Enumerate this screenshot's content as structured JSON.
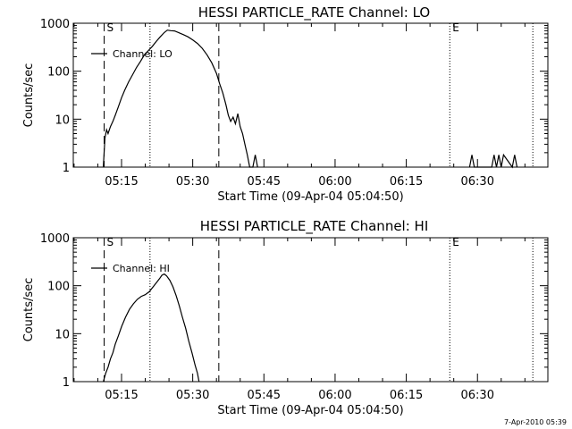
{
  "timestamp": "7-Apr-2010 05:39",
  "chart_data": [
    {
      "type": "line",
      "title": "HESSI PARTICLE_RATE Channel: LO",
      "xlabel": "Start Time (09-Apr-04 05:04:50)",
      "ylabel": "Counts/sec",
      "y_scale": "log",
      "ylim": [
        1,
        1000
      ],
      "y_ticks": [
        1,
        10,
        100,
        1000
      ],
      "y_tick_labels": [
        "1",
        "10",
        "100",
        "1000"
      ],
      "xlim": [
        "05:04:50",
        "06:44:50"
      ],
      "x_ticks": [
        "05:15",
        "05:30",
        "05:45",
        "06:00",
        "06:15",
        "06:30"
      ],
      "legend": {
        "label": "Channel: LO",
        "position": "top-left"
      },
      "markers": [
        {
          "label": "S",
          "time": "05:11:20",
          "style": "dashed"
        },
        {
          "label": "",
          "time": "05:21:00",
          "style": "dotted"
        },
        {
          "label": "",
          "time": "05:35:30",
          "style": "dashed"
        },
        {
          "label": "E",
          "time": "06:24:10",
          "style": "dotted"
        },
        {
          "label": "",
          "time": "06:41:40",
          "style": "dotted"
        }
      ],
      "series": [
        {
          "name": "Channel: LO",
          "x": [
            "05:11:10",
            "05:11:30",
            "05:11:50",
            "05:12:10",
            "05:12:40",
            "05:13:10",
            "05:13:40",
            "05:14:20",
            "05:15:00",
            "05:15:40",
            "05:16:30",
            "05:17:20",
            "05:18:10",
            "05:19:00",
            "05:19:50",
            "05:20:40",
            "05:21:30",
            "05:22:20",
            "05:23:10",
            "05:24:00",
            "05:24:40",
            "05:25:20",
            "05:26:10",
            "05:27:00",
            "05:28:00",
            "05:29:00",
            "05:30:00",
            "05:31:00",
            "05:32:00",
            "05:33:00",
            "05:34:00",
            "05:35:00",
            "05:35:40",
            "05:36:20",
            "05:37:00",
            "05:37:30",
            "05:38:00",
            "05:38:30",
            "05:39:00",
            "05:39:30",
            "05:40:00",
            "05:40:30",
            "05:41:00",
            "05:41:30",
            "05:42:00",
            "05:42:40",
            "05:43:10",
            "05:43:40"
          ],
          "y": [
            1,
            4,
            6,
            5,
            7,
            9,
            12,
            18,
            28,
            40,
            60,
            85,
            120,
            160,
            220,
            270,
            330,
            420,
            520,
            640,
            720,
            700,
            690,
            640,
            580,
            520,
            450,
            380,
            300,
            220,
            150,
            90,
            55,
            35,
            20,
            12,
            9,
            11,
            8,
            13,
            7,
            5,
            3,
            1.8,
            1,
            1,
            1.8,
            1
          ]
        },
        {
          "name": "",
          "x": [
            "06:28:20",
            "06:28:50",
            "06:29:20",
            "06:33:00",
            "06:33:30",
            "06:34:00",
            "06:34:30",
            "06:35:00",
            "06:35:30",
            "06:37:20",
            "06:37:50",
            "06:38:20"
          ],
          "y": [
            1,
            1.8,
            1,
            1,
            1.8,
            1,
            1.8,
            1,
            1.8,
            1,
            1.8,
            1
          ]
        }
      ]
    },
    {
      "type": "line",
      "title": "HESSI PARTICLE_RATE Channel: HI",
      "xlabel": "Start Time (09-Apr-04 05:04:50)",
      "ylabel": "Counts/sec",
      "y_scale": "log",
      "ylim": [
        1,
        1000
      ],
      "y_ticks": [
        1,
        10,
        100,
        1000
      ],
      "y_tick_labels": [
        "1",
        "10",
        "100",
        "1000"
      ],
      "xlim": [
        "05:04:50",
        "06:44:50"
      ],
      "x_ticks": [
        "05:15",
        "05:30",
        "05:45",
        "06:00",
        "06:15",
        "06:30"
      ],
      "legend": {
        "label": "Channel: HI",
        "position": "top-left"
      },
      "markers": [
        {
          "label": "S",
          "time": "05:11:20",
          "style": "dashed"
        },
        {
          "label": "",
          "time": "05:21:00",
          "style": "dotted"
        },
        {
          "label": "",
          "time": "05:35:30",
          "style": "dashed"
        },
        {
          "label": "E",
          "time": "06:24:10",
          "style": "dotted"
        },
        {
          "label": "",
          "time": "06:41:40",
          "style": "dotted"
        }
      ],
      "series": [
        {
          "name": "Channel: HI",
          "x": [
            "05:11:10",
            "05:11:40",
            "05:12:10",
            "05:12:40",
            "05:13:10",
            "05:13:40",
            "05:14:20",
            "05:15:00",
            "05:15:50",
            "05:16:40",
            "05:17:30",
            "05:18:20",
            "05:19:10",
            "05:20:00",
            "05:20:50",
            "05:21:40",
            "05:22:20",
            "05:23:00",
            "05:23:30",
            "05:24:00",
            "05:24:30",
            "05:25:10",
            "05:25:50",
            "05:26:30",
            "05:27:10",
            "05:27:50",
            "05:28:30",
            "05:29:10",
            "05:29:50",
            "05:30:30",
            "05:31:00",
            "05:31:20"
          ],
          "y": [
            1,
            1.5,
            2,
            3,
            4,
            6,
            9,
            14,
            22,
            32,
            42,
            52,
            60,
            65,
            75,
            95,
            115,
            140,
            165,
            175,
            160,
            130,
            95,
            62,
            38,
            22,
            13,
            7,
            4,
            2.2,
            1.5,
            1
          ]
        }
      ]
    }
  ]
}
